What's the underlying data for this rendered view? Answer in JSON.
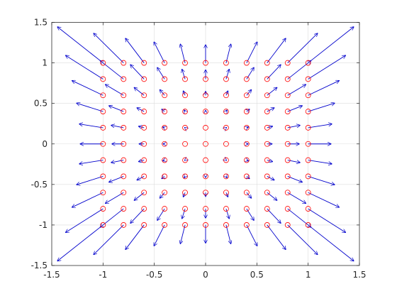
{
  "chart_data": {
    "type": "scatter",
    "title": "",
    "xlabel": "",
    "ylabel": "",
    "xlim": [
      -1.5,
      1.5
    ],
    "ylim": [
      -1.5,
      1.5
    ],
    "x_ticks": [
      -1.5,
      -1,
      -0.5,
      0,
      0.5,
      1,
      1.5
    ],
    "y_ticks": [
      -1.5,
      -1,
      -0.5,
      0,
      0.5,
      1,
      1.5
    ],
    "x_tick_labels": [
      "-1.5",
      "-1",
      "-0.5",
      "0",
      "0.5",
      "1",
      "1.5"
    ],
    "y_tick_labels": [
      "-1.5",
      "-1",
      "-0.5",
      "0",
      "0.5",
      "1",
      "1.5"
    ],
    "grid": true,
    "legend": "none",
    "series": [
      {
        "type": "scatter",
        "marker": "circle-open",
        "color": "#ff0000",
        "x_grid": [
          -1,
          -0.8,
          -0.6,
          -0.4,
          -0.2,
          0,
          0.2,
          0.4,
          0.6,
          0.8,
          1
        ],
        "y_grid": [
          -1,
          -0.8,
          -0.6,
          -0.4,
          -0.2,
          0,
          0.2,
          0.4,
          0.6,
          0.8,
          1
        ]
      },
      {
        "type": "quiver",
        "color": "#0000cc",
        "x_grid": [
          -1,
          -0.8,
          -0.6,
          -0.4,
          -0.2,
          0,
          0.2,
          0.4,
          0.6,
          0.8,
          1
        ],
        "y_grid": [
          -1,
          -0.8,
          -0.6,
          -0.4,
          -0.2,
          0,
          0.2,
          0.4,
          0.6,
          0.8,
          1
        ],
        "vector_field": "radial (u = x*(x^2+y^2)/4.5, v = y*(x^2+y^2)/4.5)"
      }
    ]
  }
}
